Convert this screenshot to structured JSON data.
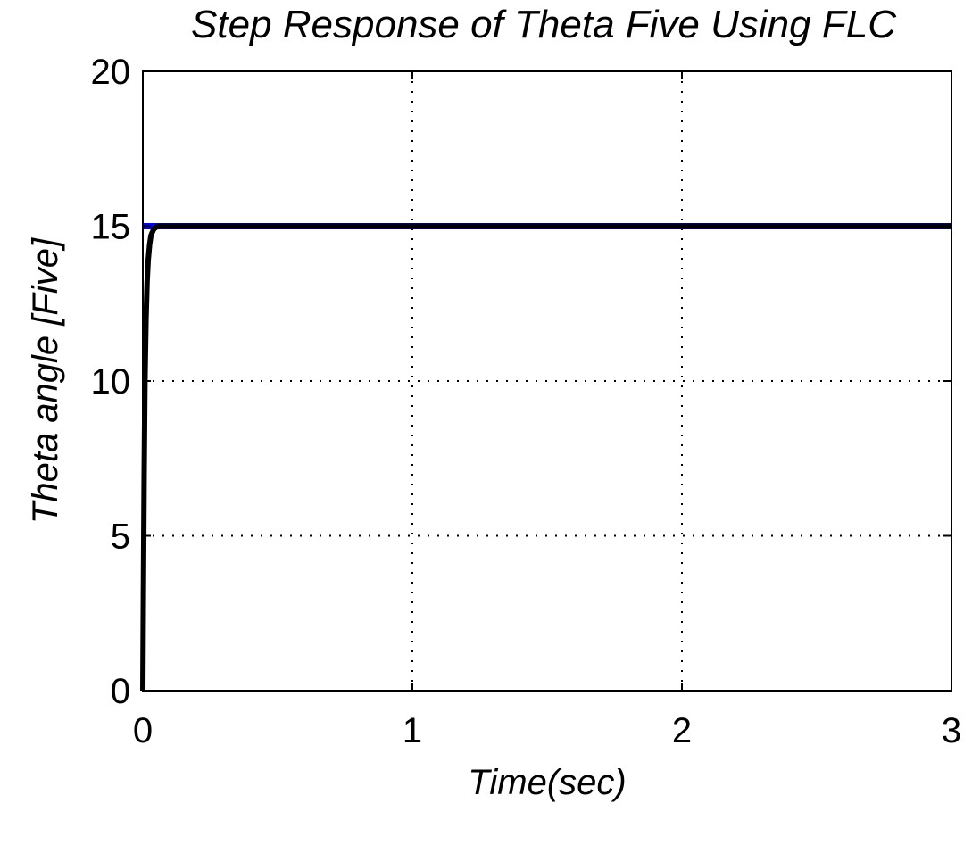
{
  "chart_data": {
    "type": "line",
    "title": "Step Response of Theta Five Using FLC",
    "xlabel": "Time(sec)",
    "ylabel": "Theta angle [Five]",
    "xlim": [
      0,
      3
    ],
    "ylim": [
      0,
      20
    ],
    "xticks": [
      0,
      1,
      2,
      3
    ],
    "yticks": [
      0,
      5,
      10,
      15,
      20
    ],
    "xtick_labels": [
      "0",
      "1",
      "2",
      "3"
    ],
    "ytick_labels": [
      "0",
      "5",
      "10",
      "15",
      "20"
    ],
    "grid": true,
    "series": [
      {
        "color": "#0000ff",
        "x": [
          0,
          3
        ],
        "y": [
          15,
          15
        ]
      },
      {
        "color": "#000000",
        "x": [
          0,
          0.002,
          0.005,
          0.008,
          0.012,
          0.016,
          0.02,
          0.025,
          0.03,
          0.04,
          0.05,
          0.06,
          0.08,
          0.1,
          0.5,
          1,
          2,
          3
        ],
        "y": [
          0,
          3,
          7,
          10,
          12,
          13.2,
          13.9,
          14.4,
          14.7,
          14.9,
          14.97,
          15,
          15,
          15,
          15,
          15,
          15,
          15
        ]
      }
    ]
  }
}
